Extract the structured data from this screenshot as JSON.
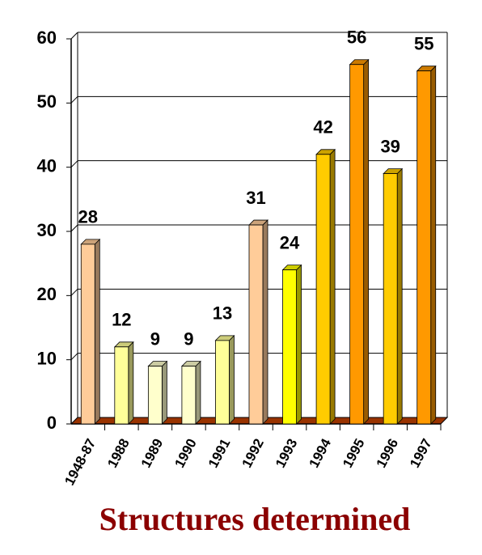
{
  "chart_data": {
    "type": "bar3d",
    "x_label": "Structures determined",
    "categories": [
      "1948-87",
      "1988",
      "1989",
      "1990",
      "1991",
      "1992",
      "1993",
      "1994",
      "1995",
      "1996",
      "1997"
    ],
    "values": [
      28,
      12,
      9,
      9,
      13,
      31,
      24,
      42,
      56,
      39,
      55
    ],
    "colors": [
      "#ffcc99",
      "#ffff99",
      "#ffffcc",
      "#ffffcc",
      "#ffff99",
      "#ffcc99",
      "#ffff00",
      "#ffcc00",
      "#ff9900",
      "#ffcc00",
      "#ff9900"
    ],
    "floor_color": "#993300",
    "ylim": [
      0,
      60
    ],
    "yticks": [
      0,
      10,
      20,
      30,
      40,
      50,
      60
    ],
    "grid": true
  }
}
